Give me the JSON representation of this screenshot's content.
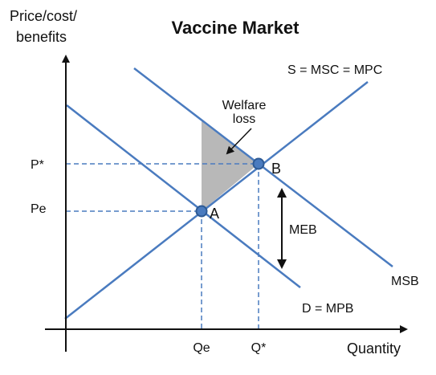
{
  "title": "Vaccine Market",
  "y_axis_label_line1": "Price/cost/",
  "y_axis_label_line2": "benefits",
  "x_axis_label": "Quantity",
  "curves": {
    "supply": "S = MSC = MPC",
    "msb": "MSB",
    "demand": "D = MPB"
  },
  "points": {
    "a": "A",
    "b": "B"
  },
  "price_ticks": {
    "p_star": "P*",
    "pe": "Pe"
  },
  "quantity_ticks": {
    "qe": "Qe",
    "q_star": "Q*"
  },
  "welfare_loss_line1": "Welfare",
  "welfare_loss_line2": "loss",
  "meb_label": "MEB",
  "colors": {
    "curve": "#4a7bbf",
    "point_fill": "#4a7bbf",
    "point_stroke": "#2d5a94",
    "welfare_shade": "#b8b8b8",
    "axis": "#111111"
  }
}
